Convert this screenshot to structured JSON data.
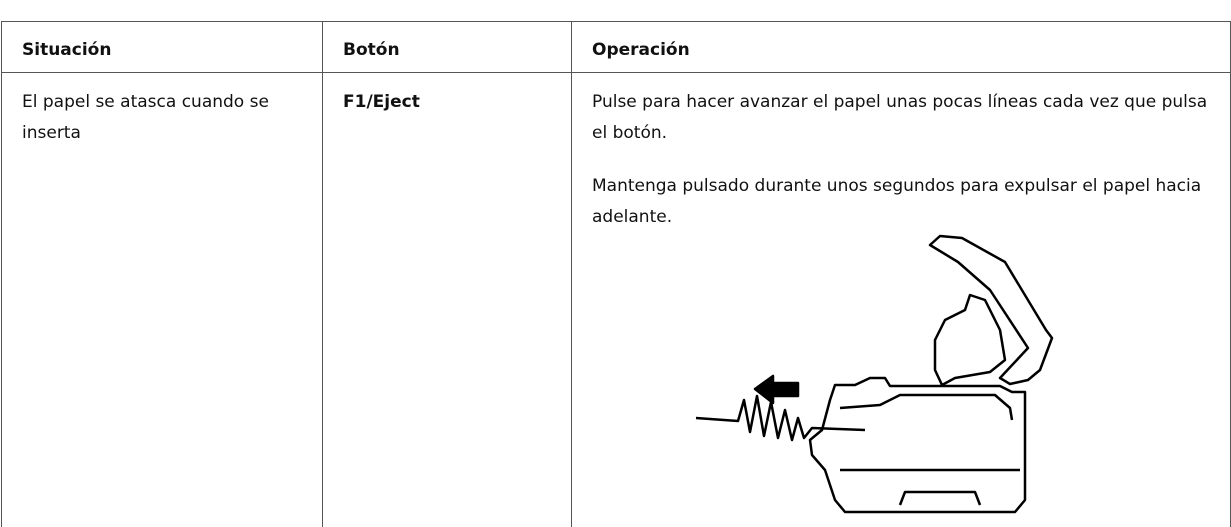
{
  "table": {
    "headers": [
      "Situación",
      "Botón",
      "Operación"
    ],
    "rows": [
      [
        "El papel se atasca cuando se inserta",
        "F1/Eject",
        [
          "Pulse para hacer avanzar el papel unas pocas líneas cada vez que pulsa el botón.",
          "Mantenga pulsado durante unos segundos para expulsar el papel hacia adelante."
        ]
      ]
    ]
  }
}
